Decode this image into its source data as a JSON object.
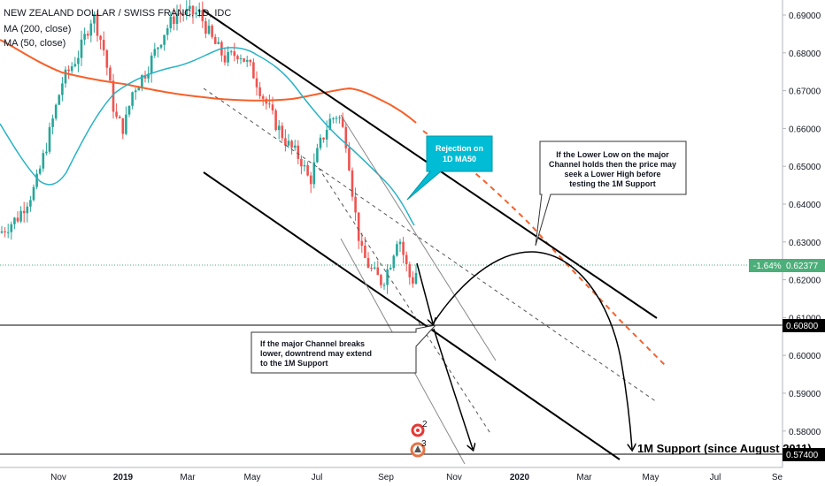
{
  "legend": {
    "symbol": "NEW ZEALAND DOLLAR / SWISS FRANC, 1D, IDC",
    "ma200": "MA (200, close)",
    "ma50": "MA (50, close)"
  },
  "chart_data": {
    "type": "candlestick",
    "title": "NEW ZEALAND DOLLAR / SWISS FRANC, 1D, IDC",
    "x_ticks": [
      "Nov",
      "2019",
      "Mar",
      "May",
      "Jul",
      "Sep",
      "Nov",
      "2020",
      "Mar",
      "May",
      "Jul",
      "Se"
    ],
    "y_ticks": [
      "0.69000",
      "0.68000",
      "0.67000",
      "0.66000",
      "0.65000",
      "0.64000",
      "0.63000",
      "0.62000",
      "0.61000",
      "0.60000",
      "0.59000",
      "0.58000"
    ],
    "ylim": [
      0.572,
      0.6935
    ],
    "current_price": {
      "label": "0.62377",
      "change": "-1.64%",
      "value": 0.62377
    },
    "levels": [
      {
        "label": "0.60800",
        "value": 0.608
      },
      {
        "label": "0.57400",
        "value": 0.574
      }
    ],
    "series": [
      {
        "name": "MA (200, close)",
        "color": "#f7602a"
      },
      {
        "name": "MA (50, close)",
        "color": "#27b3c5"
      }
    ],
    "colors": {
      "up": "#26a69a",
      "down": "#ef5350",
      "ma200": "#f7602a",
      "ma50": "#27b3c5",
      "price_tag": "#4caf7a"
    }
  },
  "annotations": {
    "rejection": "Rejection on 1D MA50",
    "lower_high": [
      "If the Lower Low on the major",
      "Channel holds then the price may",
      "seek a Lower High before",
      "testing the 1M Support"
    ],
    "channel_break": [
      "If the major Channel breaks",
      "lower, downtrend may extend",
      "to the 1M Support"
    ],
    "support_label": "1M Support (since August 2011)",
    "events": [
      "2",
      "3"
    ]
  }
}
